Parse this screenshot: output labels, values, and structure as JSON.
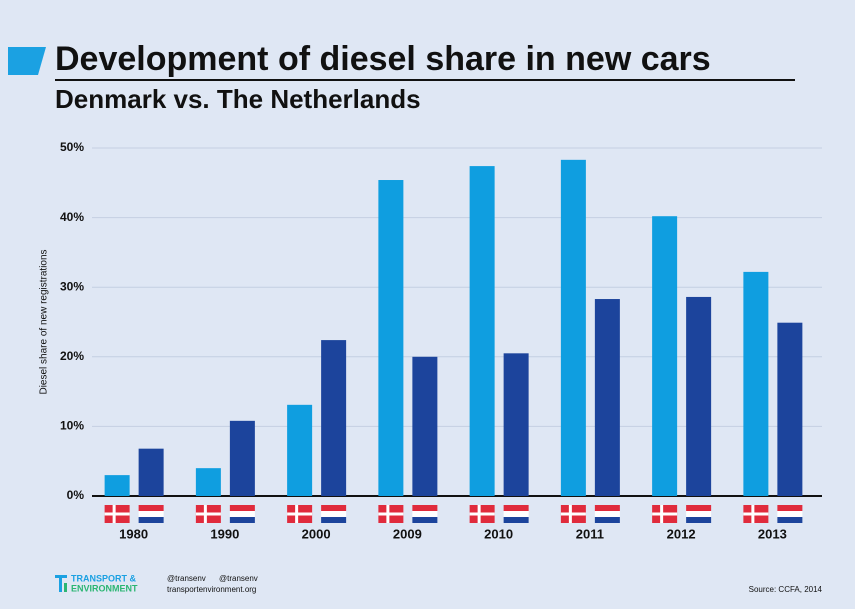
{
  "chart_data": {
    "type": "bar",
    "title": "Development of diesel share in new cars",
    "subtitle": "Denmark vs. The Netherlands",
    "y_label": "Diesel share of new registrations",
    "categories": [
      "1980",
      "1990",
      "2000",
      "2009",
      "2010",
      "2011",
      "2012",
      "2013"
    ],
    "series": [
      {
        "color": "#0f9ee0",
        "values": [
          3.0,
          4.0,
          13.1,
          45.4,
          47.4,
          48.3,
          40.2,
          32.2
        ]
      },
      {
        "color": "#1c449c",
        "values": [
          6.8,
          10.8,
          22.4,
          20.0,
          20.5,
          28.3,
          28.6,
          24.9
        ]
      }
    ],
    "ylim": [
      0,
      50
    ],
    "yticks": [
      {
        "value": 0,
        "label": "0%"
      },
      {
        "value": 10,
        "label": "10%"
      },
      {
        "value": 20,
        "label": "20%"
      },
      {
        "value": 30,
        "label": "30%"
      },
      {
        "value": 40,
        "label": "40%"
      },
      {
        "value": 50,
        "label": "50%"
      }
    ],
    "grid": true,
    "footer": {
      "brand_line1": "TRANSPORT &",
      "brand_line2": "ENVIRONMENT",
      "twitter": "@transenv",
      "facebook": "@transenv",
      "website": "transportenvironment.org",
      "source": "Source: CCFA, 2014"
    }
  }
}
